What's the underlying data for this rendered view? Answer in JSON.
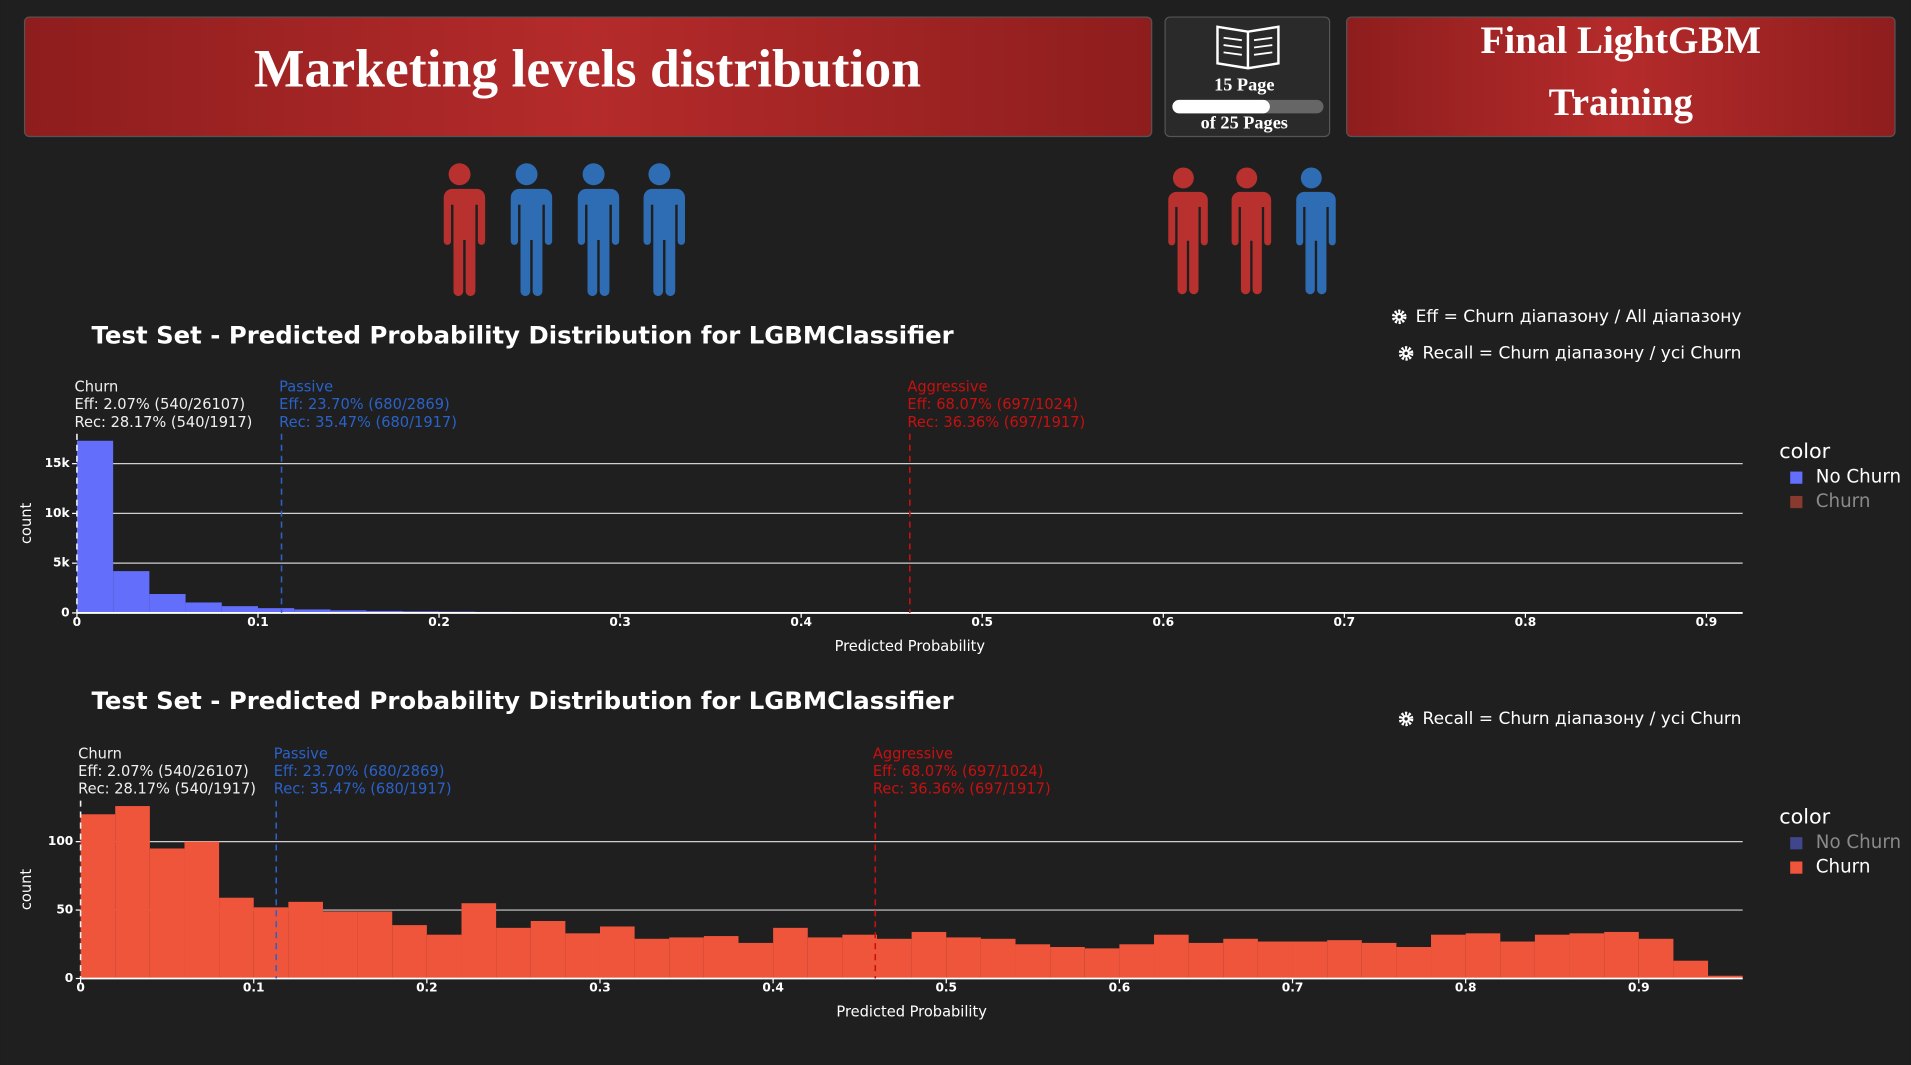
{
  "header": {
    "title": "Marketing levels distribution",
    "page": "15 Page",
    "pages": "of 25 Pages",
    "section": [
      "Final LightGBM",
      "Training"
    ]
  },
  "chart_data": [
    {
      "type": "histogram",
      "title": "Test Set - Predicted Probability Distribution for LGBMClassifier",
      "xlabel": "Predicted Probability",
      "ylabel": "count",
      "legend_title": "color",
      "legend": "right",
      "notes": [
        "Eff = Churn діапазону / All діапазону",
        "Recall = Churn діапазону / усі Churn"
      ],
      "bins": [
        0,
        0.02,
        0.04,
        0.06,
        0.08,
        0.1,
        0.12,
        0.14,
        0.16,
        0.18,
        0.2,
        0.22,
        0.24,
        0.26,
        0.28,
        0.3,
        0.32,
        0.34,
        0.36,
        0.38,
        0.4,
        0.42,
        0.44,
        0.46,
        0.48,
        0.5,
        0.52,
        0.54,
        0.56,
        0.58,
        0.6,
        0.62,
        0.64,
        0.66,
        0.68,
        0.7,
        0.72,
        0.74,
        0.76,
        0.78,
        0.8,
        0.82,
        0.84,
        0.86,
        0.88,
        0.9,
        0.92
      ],
      "series": [
        {
          "name": "No Churn",
          "color": "#636efa",
          "visible": true,
          "values": [
            17300,
            4200,
            1900,
            1050,
            680,
            480,
            350,
            260,
            200,
            160,
            130,
            105,
            90,
            75,
            65,
            55,
            48,
            42,
            36,
            32,
            28,
            24,
            20,
            17,
            14,
            12,
            10,
            9,
            8,
            7,
            6,
            5,
            5,
            4,
            4,
            3,
            3,
            2,
            2,
            2,
            1,
            1,
            1,
            1,
            0,
            0
          ]
        },
        {
          "name": "Churn",
          "color": "#ef553b",
          "visible": false
        }
      ],
      "xlim": [
        0,
        0.92
      ],
      "ylim": [
        0,
        18000
      ],
      "xticks": [
        0,
        0.1,
        0.2,
        0.3,
        0.4,
        0.5,
        0.6,
        0.7,
        0.8,
        0.9
      ],
      "yticks": [
        0,
        {
          "value": 5000,
          "label": "5k"
        },
        {
          "value": 10000,
          "label": "10k"
        },
        {
          "value": 15000,
          "label": "15k"
        }
      ],
      "grid": true,
      "annotations": [
        {
          "x": 0,
          "color": "#f0f0f0",
          "lines": [
            "Churn",
            "Eff: 2.07% (540/26107)",
            "Rec: 28.17% (540/1917)"
          ]
        },
        {
          "x": 0.113,
          "color": "#2a62c9",
          "lines": [
            "Passive",
            "Eff: 23.70% (680/2869)",
            "Rec: 35.47% (680/1917)"
          ]
        },
        {
          "x": 0.46,
          "color": "#c81010",
          "lines": [
            "Aggressive",
            "Eff: 68.07% (697/1024)",
            "Rec: 36.36% (697/1917)"
          ]
        }
      ]
    },
    {
      "type": "histogram",
      "title": "Test Set - Predicted Probability Distribution for LGBMClassifier",
      "xlabel": "Predicted Probability",
      "ylabel": "count",
      "legend_title": "color",
      "legend": "right",
      "notes": [
        "Recall = Churn діапазону / усі Churn"
      ],
      "bins": [
        0,
        0.02,
        0.04,
        0.06,
        0.08,
        0.1,
        0.12,
        0.14,
        0.16,
        0.18,
        0.2,
        0.22,
        0.24,
        0.26,
        0.28,
        0.3,
        0.32,
        0.34,
        0.36,
        0.38,
        0.4,
        0.42,
        0.44,
        0.46,
        0.48,
        0.5,
        0.52,
        0.54,
        0.56,
        0.58,
        0.6,
        0.62,
        0.64,
        0.66,
        0.68,
        0.7,
        0.72,
        0.74,
        0.76,
        0.78,
        0.8,
        0.82,
        0.84,
        0.86,
        0.88,
        0.9,
        0.92,
        0.94,
        0.96
      ],
      "series": [
        {
          "name": "No Churn",
          "color": "#636efa",
          "visible": false
        },
        {
          "name": "Churn",
          "color": "#ef553b",
          "visible": true,
          "values": [
            120,
            126,
            95,
            100,
            59,
            52,
            56,
            49,
            49,
            39,
            32,
            55,
            37,
            42,
            33,
            38,
            29,
            30,
            31,
            26,
            37,
            30,
            32,
            29,
            34,
            30,
            29,
            25,
            23,
            22,
            25,
            32,
            26,
            29,
            27,
            27,
            28,
            26,
            23,
            32,
            33,
            27,
            32,
            33,
            34,
            29,
            13,
            2
          ]
        }
      ],
      "xlim": [
        0,
        0.96
      ],
      "ylim": [
        0,
        130
      ],
      "xticks": [
        0,
        0.1,
        0.2,
        0.3,
        0.4,
        0.5,
        0.6,
        0.7,
        0.8,
        0.9
      ],
      "yticks": [
        0,
        50,
        100
      ],
      "grid": true,
      "annotations": [
        {
          "x": 0,
          "color": "#f0f0f0",
          "lines": [
            "Churn",
            "Eff: 2.07% (540/26107)",
            "Rec: 28.17% (540/1917)"
          ]
        },
        {
          "x": 0.113,
          "color": "#2a62c9",
          "lines": [
            "Passive",
            "Eff: 23.70% (680/2869)",
            "Rec: 35.47% (680/1917)"
          ]
        },
        {
          "x": 0.459,
          "color": "#c81010",
          "lines": [
            "Aggressive",
            "Eff: 68.07% (697/1024)",
            "Rec: 36.36% (697/1917)"
          ]
        }
      ]
    }
  ]
}
